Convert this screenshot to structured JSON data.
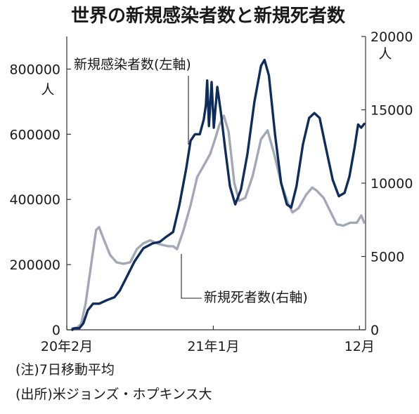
{
  "chart_data": {
    "type": "line",
    "title": "世界の新規感染者数と新規死者数",
    "left_axis": {
      "unit": "人",
      "range": [
        0,
        900000
      ],
      "ticks": [
        0,
        200000,
        400000,
        600000,
        800000
      ],
      "tick_labels": [
        "0",
        "200000",
        "400000",
        "600000",
        "800000"
      ]
    },
    "right_axis": {
      "unit": "人",
      "range": [
        0,
        20000
      ],
      "ticks": [
        0,
        5000,
        10000,
        15000,
        20000
      ],
      "tick_labels": [
        "0",
        "5000",
        "10000",
        "15000",
        "20000"
      ]
    },
    "x_axis": {
      "range": [
        "2020-02-01",
        "2021-12-15"
      ],
      "ticks": [
        {
          "date": "2020-02-01",
          "label": "20年2月"
        },
        {
          "date": "2021-01-01",
          "label": "21年1月"
        },
        {
          "date": "2021-12-01",
          "label": "12月"
        }
      ]
    },
    "grid": false,
    "series": [
      {
        "name": "新規感染者数(左軸)",
        "axis": "left",
        "color": "#0e2d5c",
        "points": [
          [
            "2020-01-22",
            0
          ],
          [
            "2020-02-10",
            2000
          ],
          [
            "2020-02-20",
            5000
          ],
          [
            "2020-03-01",
            5000
          ],
          [
            "2020-03-10",
            20000
          ],
          [
            "2020-03-20",
            60000
          ],
          [
            "2020-04-01",
            80000
          ],
          [
            "2020-04-15",
            80000
          ],
          [
            "2020-05-01",
            90000
          ],
          [
            "2020-05-20",
            100000
          ],
          [
            "2020-06-01",
            120000
          ],
          [
            "2020-06-20",
            170000
          ],
          [
            "2020-07-05",
            210000
          ],
          [
            "2020-07-25",
            250000
          ],
          [
            "2020-08-15",
            265000
          ],
          [
            "2020-09-01",
            270000
          ],
          [
            "2020-09-15",
            285000
          ],
          [
            "2020-10-01",
            300000
          ],
          [
            "2020-10-15",
            380000
          ],
          [
            "2020-10-31",
            495000
          ],
          [
            "2020-11-10",
            580000
          ],
          [
            "2020-11-20",
            600000
          ],
          [
            "2020-12-01",
            600000
          ],
          [
            "2020-12-10",
            645000
          ],
          [
            "2020-12-15",
            690000
          ],
          [
            "2020-12-18",
            765000
          ],
          [
            "2020-12-22",
            625000
          ],
          [
            "2020-12-28",
            760000
          ],
          [
            "2021-01-02",
            620000
          ],
          [
            "2021-01-10",
            745000
          ],
          [
            "2021-01-18",
            670000
          ],
          [
            "2021-01-28",
            555000
          ],
          [
            "2021-02-08",
            440000
          ],
          [
            "2021-02-20",
            385000
          ],
          [
            "2021-03-05",
            430000
          ],
          [
            "2021-03-20",
            540000
          ],
          [
            "2021-04-05",
            700000
          ],
          [
            "2021-04-20",
            810000
          ],
          [
            "2021-04-28",
            828000
          ],
          [
            "2021-05-08",
            780000
          ],
          [
            "2021-05-22",
            600000
          ],
          [
            "2021-06-05",
            450000
          ],
          [
            "2021-06-18",
            385000
          ],
          [
            "2021-06-28",
            375000
          ],
          [
            "2021-07-10",
            440000
          ],
          [
            "2021-07-25",
            570000
          ],
          [
            "2021-08-08",
            650000
          ],
          [
            "2021-08-20",
            665000
          ],
          [
            "2021-09-01",
            650000
          ],
          [
            "2021-09-15",
            560000
          ],
          [
            "2021-10-01",
            460000
          ],
          [
            "2021-10-15",
            410000
          ],
          [
            "2021-10-28",
            420000
          ],
          [
            "2021-11-08",
            470000
          ],
          [
            "2021-11-20",
            560000
          ],
          [
            "2021-11-28",
            630000
          ],
          [
            "2021-12-05",
            620000
          ],
          [
            "2021-12-12",
            632000
          ]
        ]
      },
      {
        "name": "新規死者数(右軸)",
        "axis": "right",
        "color": "#a3a8b6",
        "points": [
          [
            "2020-01-22",
            0
          ],
          [
            "2020-02-10",
            100
          ],
          [
            "2020-02-25",
            150
          ],
          [
            "2020-03-05",
            400
          ],
          [
            "2020-03-15",
            1800
          ],
          [
            "2020-03-28",
            4500
          ],
          [
            "2020-04-08",
            6800
          ],
          [
            "2020-04-15",
            7000
          ],
          [
            "2020-04-25",
            6200
          ],
          [
            "2020-05-10",
            5100
          ],
          [
            "2020-05-25",
            4600
          ],
          [
            "2020-06-10",
            4500
          ],
          [
            "2020-06-25",
            4600
          ],
          [
            "2020-07-10",
            5500
          ],
          [
            "2020-07-25",
            5900
          ],
          [
            "2020-08-10",
            6100
          ],
          [
            "2020-08-25",
            5900
          ],
          [
            "2020-09-05",
            5800
          ],
          [
            "2020-09-20",
            5700
          ],
          [
            "2020-10-01",
            5700
          ],
          [
            "2020-10-10",
            5500
          ],
          [
            "2020-10-25",
            6800
          ],
          [
            "2020-11-10",
            8500
          ],
          [
            "2020-11-25",
            10400
          ],
          [
            "2020-12-10",
            11200
          ],
          [
            "2020-12-25",
            12000
          ],
          [
            "2021-01-05",
            13000
          ],
          [
            "2021-01-15",
            14000
          ],
          [
            "2021-01-25",
            14600
          ],
          [
            "2021-02-05",
            13500
          ],
          [
            "2021-02-18",
            10000
          ],
          [
            "2021-03-01",
            8800
          ],
          [
            "2021-03-15",
            9000
          ],
          [
            "2021-04-01",
            10500
          ],
          [
            "2021-04-20",
            13000
          ],
          [
            "2021-05-05",
            13600
          ],
          [
            "2021-05-20",
            12000
          ],
          [
            "2021-06-05",
            10000
          ],
          [
            "2021-06-20",
            8700
          ],
          [
            "2021-07-01",
            8000
          ],
          [
            "2021-07-15",
            8300
          ],
          [
            "2021-08-01",
            9200
          ],
          [
            "2021-08-15",
            9700
          ],
          [
            "2021-08-25",
            9500
          ],
          [
            "2021-09-10",
            9000
          ],
          [
            "2021-09-25",
            8100
          ],
          [
            "2021-10-10",
            7200
          ],
          [
            "2021-10-25",
            7100
          ],
          [
            "2021-11-10",
            7300
          ],
          [
            "2021-11-25",
            7300
          ],
          [
            "2021-12-01",
            7600
          ],
          [
            "2021-12-05",
            7800
          ],
          [
            "2021-12-12",
            7300
          ]
        ]
      }
    ],
    "annotations": [
      {
        "text": "新規感染者数(左軸)",
        "series": "新規感染者数(左軸)"
      },
      {
        "text": "新規死者数(右軸)",
        "series": "新規死者数(右軸)"
      }
    ]
  },
  "notes": {
    "note": "(注)7日移動平均",
    "source": "(出所)米ジョンズ・ホプキンス大"
  }
}
